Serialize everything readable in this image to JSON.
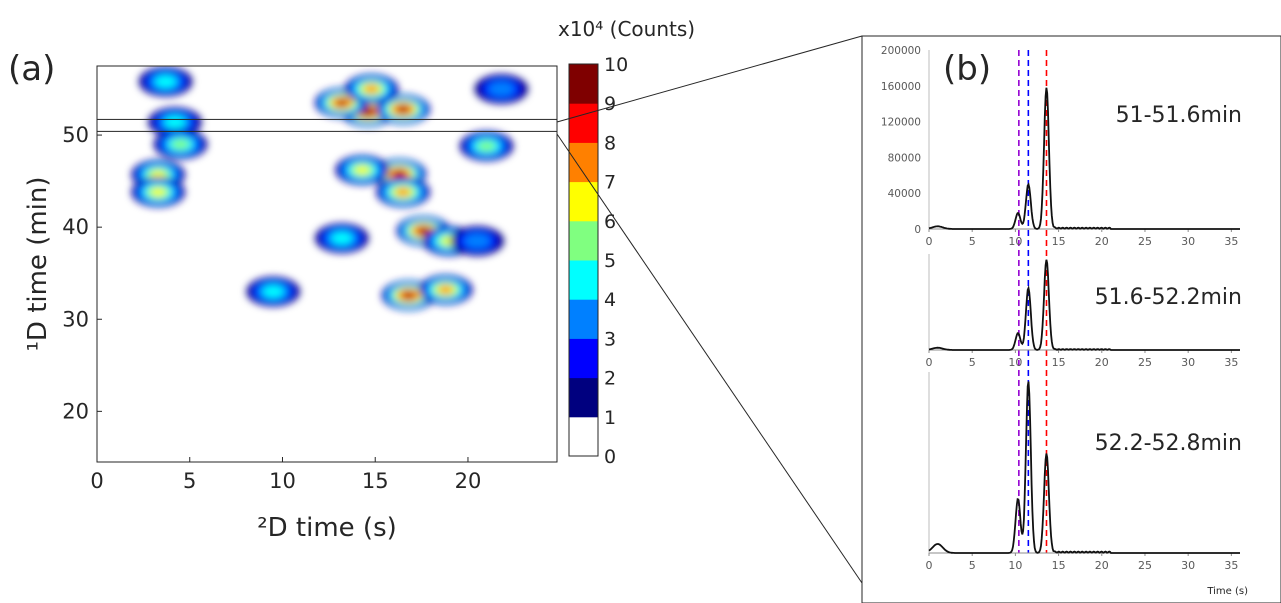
{
  "panel_a": {
    "label": "(a)",
    "colorbar_unit": "x10⁴ (Counts)",
    "colorbar_ticks": [
      "0",
      "1",
      "2",
      "3",
      "4",
      "5",
      "6",
      "7",
      "8",
      "9",
      "10"
    ],
    "colorbar_colors": [
      "#ffffff",
      "#00007f",
      "#0000ff",
      "#0080ff",
      "#00ffff",
      "#80ff80",
      "#ffff00",
      "#ff8000",
      "#ff0000",
      "#7f0000"
    ]
  },
  "panel_b": {
    "label": "(b)",
    "dashed_line_colors": [
      "#9400d3",
      "#0000ff",
      "#ff0000"
    ],
    "dashed_line_x": [
      10.4,
      11.5,
      13.6
    ]
  },
  "chart_data": [
    {
      "type": "heatmap",
      "title": "",
      "xlabel": "²D time (s)",
      "ylabel": "¹D time (min)",
      "xlim": [
        0,
        24.8
      ],
      "ylim": [
        14.5,
        57.5
      ],
      "xticks": [
        "0",
        "5",
        "10",
        "15",
        "20"
      ],
      "yticks": [
        "20",
        "30",
        "40",
        "50"
      ],
      "colorbar": {
        "label": "x10⁴ (Counts)",
        "range": [
          0,
          10
        ]
      },
      "highlight_band": {
        "y": [
          50.4,
          51.7
        ]
      },
      "blobs": [
        {
          "x": 14.6,
          "y": 52.5,
          "level": 9.5
        },
        {
          "x": 13.2,
          "y": 53.5,
          "level": 8.5
        },
        {
          "x": 16.5,
          "y": 52.8,
          "level": 9
        },
        {
          "x": 14.8,
          "y": 55.0,
          "level": 7
        },
        {
          "x": 16.3,
          "y": 45.8,
          "level": 9
        },
        {
          "x": 14.3,
          "y": 46.2,
          "level": 6
        },
        {
          "x": 16.5,
          "y": 43.8,
          "level": 7
        },
        {
          "x": 17.6,
          "y": 39.6,
          "level": 9
        },
        {
          "x": 19.0,
          "y": 38.5,
          "level": 6
        },
        {
          "x": 16.8,
          "y": 32.6,
          "level": 9
        },
        {
          "x": 18.8,
          "y": 33.2,
          "level": 7
        },
        {
          "x": 3.7,
          "y": 55.8,
          "level": 4
        },
        {
          "x": 4.2,
          "y": 51.4,
          "level": 4
        },
        {
          "x": 4.5,
          "y": 49.0,
          "level": 5
        },
        {
          "x": 3.3,
          "y": 45.7,
          "level": 6
        },
        {
          "x": 3.3,
          "y": 43.8,
          "level": 6
        },
        {
          "x": 9.5,
          "y": 33.0,
          "level": 4
        },
        {
          "x": 13.2,
          "y": 38.8,
          "level": 4
        },
        {
          "x": 21.0,
          "y": 48.8,
          "level": 5
        },
        {
          "x": 21.8,
          "y": 55.0,
          "level": 3
        },
        {
          "x": 20.5,
          "y": 38.5,
          "level": 3
        }
      ]
    },
    {
      "type": "line",
      "title": "51-51.6min",
      "xlabel": "",
      "ylabel": "",
      "xlim": [
        0,
        36
      ],
      "ylim": [
        0,
        200000
      ],
      "xticks": [
        "0",
        "5",
        "10",
        "15",
        "20",
        "25",
        "30",
        "35"
      ],
      "yticks": [
        "0",
        "40000",
        "80000",
        "120000",
        "160000",
        "200000"
      ],
      "peaks": [
        {
          "x": 1.0,
          "y": 3000
        },
        {
          "x": 10.3,
          "y": 18000
        },
        {
          "x": 11.5,
          "y": 50000
        },
        {
          "x": 13.6,
          "y": 158000
        }
      ]
    },
    {
      "type": "line",
      "title": "51.6-52.2min",
      "xlabel": "",
      "ylabel": "",
      "xlim": [
        0,
        36
      ],
      "ylim": [
        0,
        200000
      ],
      "xticks": [
        "0",
        "5",
        "10",
        "15",
        "20",
        "25",
        "30",
        "35"
      ],
      "yticks": [],
      "peaks": [
        {
          "x": 1.0,
          "y": 4000
        },
        {
          "x": 10.3,
          "y": 30000
        },
        {
          "x": 11.5,
          "y": 110000
        },
        {
          "x": 13.6,
          "y": 160000
        }
      ]
    },
    {
      "type": "line",
      "title": "52.2-52.8min",
      "xlabel": "Time (s)",
      "ylabel": "",
      "xlim": [
        0,
        36
      ],
      "ylim": [
        0,
        200000
      ],
      "xticks": [
        "0",
        "5",
        "10",
        "15",
        "20",
        "25",
        "30",
        "35"
      ],
      "yticks": [],
      "peaks": [
        {
          "x": 1.0,
          "y": 10000
        },
        {
          "x": 10.3,
          "y": 60000
        },
        {
          "x": 11.5,
          "y": 190000
        },
        {
          "x": 13.6,
          "y": 110000
        }
      ]
    }
  ]
}
